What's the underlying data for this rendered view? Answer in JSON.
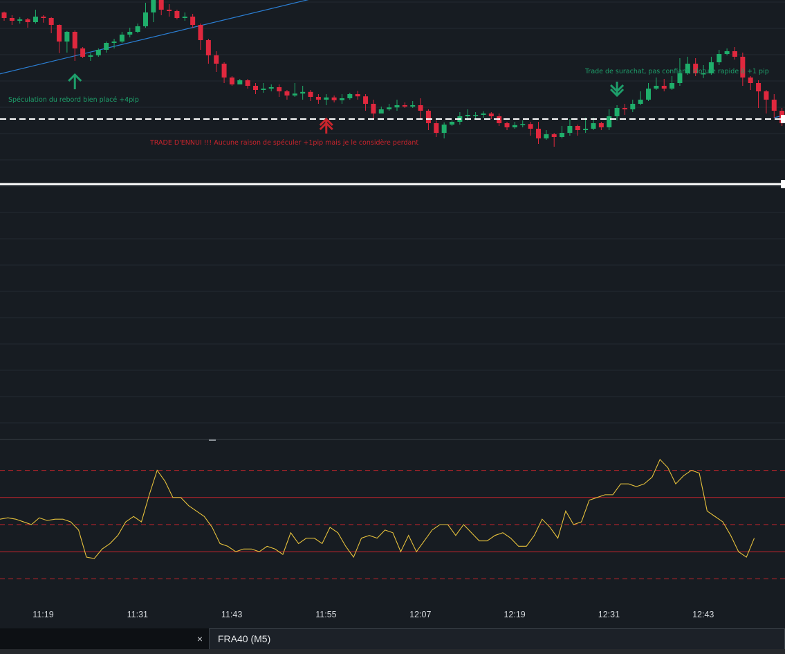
{
  "colors": {
    "background": "#171c22",
    "bull": "#1fae6b",
    "bear": "#e0283e",
    "trendline": "#2b7fd4",
    "oscillator": "#e6c13c",
    "level_line": "#ffffff",
    "band_line": "#c8242c",
    "annotation_green": "#1e9e6a",
    "annotation_red": "#c8242c"
  },
  "annotations": {
    "long_trade_1": "Spéculation du rebord bien placé +4pip",
    "long_trade_2": "TRADE D'ENNUI !!! Aucune raison de spéculer +1pip mais je le considère perdant",
    "short_trade": "Trade de surachat, pas confiant, cloture rapide à +1 pip"
  },
  "icons": {
    "long_1": "arrow-up-icon",
    "long_2": "double-arrow-up-icon",
    "short": "double-arrow-down-icon",
    "close": "close-icon"
  },
  "time_axis": [
    "11:19",
    "11:31",
    "11:43",
    "11:55",
    "12:07",
    "12:19",
    "12:31",
    "12:43"
  ],
  "tab": {
    "close_symbol": "×",
    "label": "FRA40 (M5)"
  },
  "chart_data": {
    "type": "candlestick",
    "symbol": "FRA40",
    "timeframe": "M5",
    "price_axis_visible": false,
    "y_units": "relative price (higher = up)",
    "candles": [
      [
        955,
        935,
        958,
        925
      ],
      [
        935,
        925,
        945,
        910
      ],
      [
        925,
        930,
        938,
        915
      ],
      [
        930,
        920,
        935,
        900
      ],
      [
        920,
        940,
        965,
        915
      ],
      [
        940,
        935,
        945,
        918
      ],
      [
        935,
        910,
        938,
        880
      ],
      [
        910,
        850,
        912,
        808
      ],
      [
        850,
        885,
        888,
        810
      ],
      [
        885,
        825,
        890,
        780
      ],
      [
        825,
        795,
        830,
        790
      ],
      [
        795,
        800,
        808,
        780
      ],
      [
        800,
        820,
        825,
        795
      ],
      [
        820,
        845,
        850,
        810
      ],
      [
        845,
        850,
        860,
        825
      ],
      [
        850,
        875,
        885,
        845
      ],
      [
        875,
        885,
        900,
        865
      ],
      [
        885,
        905,
        915,
        880
      ],
      [
        905,
        955,
        990,
        900
      ],
      [
        955,
        1005,
        1020,
        920
      ],
      [
        1005,
        965,
        1005,
        945
      ],
      [
        965,
        960,
        985,
        940
      ],
      [
        960,
        935,
        965,
        930
      ],
      [
        935,
        940,
        955,
        925
      ],
      [
        940,
        910,
        950,
        900
      ],
      [
        910,
        855,
        915,
        820
      ],
      [
        855,
        800,
        860,
        770
      ],
      [
        800,
        770,
        815,
        740
      ],
      [
        770,
        720,
        775,
        700
      ],
      [
        720,
        695,
        725,
        690
      ],
      [
        695,
        710,
        715,
        700
      ],
      [
        710,
        690,
        715,
        680
      ],
      [
        690,
        675,
        700,
        660
      ],
      [
        675,
        680,
        700,
        665
      ],
      [
        680,
        685,
        695,
        670
      ],
      [
        685,
        670,
        695,
        650
      ],
      [
        670,
        655,
        675,
        640
      ],
      [
        655,
        662,
        700,
        650
      ],
      [
        662,
        668,
        690,
        640
      ],
      [
        668,
        650,
        675,
        635
      ],
      [
        650,
        640,
        660,
        625
      ],
      [
        640,
        648,
        660,
        620
      ],
      [
        648,
        638,
        655,
        630
      ],
      [
        638,
        645,
        660,
        625
      ],
      [
        645,
        660,
        665,
        640
      ],
      [
        660,
        652,
        672,
        640
      ],
      [
        652,
        625,
        660,
        600
      ],
      [
        625,
        590,
        640,
        570
      ],
      [
        590,
        605,
        615,
        595
      ],
      [
        605,
        612,
        625,
        600
      ],
      [
        612,
        620,
        640,
        600
      ],
      [
        620,
        615,
        630,
        610
      ],
      [
        615,
        620,
        635,
        610
      ],
      [
        620,
        600,
        645,
        570
      ],
      [
        600,
        555,
        605,
        530
      ],
      [
        555,
        520,
        565,
        505
      ],
      [
        520,
        550,
        558,
        500
      ],
      [
        550,
        560,
        565,
        545
      ],
      [
        560,
        580,
        595,
        550
      ],
      [
        580,
        585,
        605,
        565
      ],
      [
        585,
        585,
        595,
        570
      ],
      [
        585,
        590,
        598,
        575
      ],
      [
        590,
        580,
        595,
        570
      ],
      [
        580,
        555,
        590,
        545
      ],
      [
        555,
        540,
        560,
        530
      ],
      [
        540,
        548,
        560,
        535
      ],
      [
        548,
        552,
        565,
        540
      ],
      [
        552,
        535,
        560,
        510
      ],
      [
        535,
        500,
        560,
        480
      ],
      [
        500,
        515,
        530,
        495
      ],
      [
        515,
        505,
        520,
        470
      ],
      [
        505,
        520,
        545,
        500
      ],
      [
        520,
        545,
        570,
        510
      ],
      [
        545,
        530,
        550,
        510
      ],
      [
        530,
        535,
        575,
        520
      ],
      [
        535,
        555,
        575,
        530
      ],
      [
        555,
        540,
        560,
        530
      ],
      [
        540,
        580,
        605,
        530
      ],
      [
        580,
        610,
        620,
        565
      ],
      [
        610,
        605,
        625,
        585
      ],
      [
        605,
        625,
        640,
        595
      ],
      [
        625,
        640,
        670,
        620
      ],
      [
        640,
        680,
        700,
        635
      ],
      [
        680,
        690,
        720,
        675
      ],
      [
        690,
        680,
        715,
        670
      ],
      [
        680,
        700,
        725,
        675
      ],
      [
        700,
        735,
        790,
        690
      ],
      [
        735,
        770,
        795,
        730
      ],
      [
        770,
        735,
        790,
        725
      ],
      [
        735,
        735,
        765,
        718
      ],
      [
        735,
        775,
        795,
        730
      ],
      [
        775,
        805,
        820,
        765
      ],
      [
        805,
        815,
        825,
        800
      ],
      [
        815,
        795,
        830,
        785
      ],
      [
        795,
        720,
        810,
        690
      ],
      [
        720,
        700,
        725,
        675
      ],
      [
        700,
        670,
        710,
        610
      ],
      [
        670,
        640,
        675,
        590
      ],
      [
        640,
        600,
        660,
        575
      ],
      [
        600,
        555,
        610,
        545
      ]
    ],
    "trendlines": [
      {
        "from": [
          -1,
          730
        ],
        "to": [
          40,
          1010
        ]
      },
      {
        "from": [
          98,
          575
        ],
        "to": [
          101,
          595
        ]
      }
    ],
    "horizontal_levels": [
      {
        "y": 570,
        "style": "dashed"
      },
      {
        "y": 335,
        "style": "solid"
      }
    ],
    "trade_markers": [
      {
        "direction": "up",
        "bar": 9,
        "note_key": "long_trade_1"
      },
      {
        "direction": "up",
        "bar": 41,
        "note_key": "long_trade_2"
      },
      {
        "direction": "down",
        "bar": 78,
        "note_key": "short_trade"
      }
    ],
    "oscillator": {
      "ylim": [
        0,
        100
      ],
      "levels_dashed": [
        90,
        50,
        10
      ],
      "levels_solid": [
        70,
        30
      ],
      "values": [
        54,
        55,
        54,
        52,
        50,
        55,
        53,
        54,
        54,
        52,
        46,
        26,
        25,
        32,
        36,
        42,
        52,
        56,
        52,
        72,
        90,
        82,
        70,
        70,
        64,
        60,
        56,
        48,
        36,
        34,
        30,
        32,
        32,
        30,
        34,
        32,
        28,
        44,
        36,
        40,
        40,
        36,
        48,
        44,
        34,
        26,
        40,
        42,
        40,
        46,
        44,
        30,
        42,
        30,
        38,
        46,
        50,
        50,
        42,
        50,
        44,
        38,
        38,
        42,
        44,
        40,
        34,
        34,
        42,
        54,
        48,
        40,
        60,
        50,
        52,
        68,
        70,
        72,
        72,
        80,
        80,
        78,
        80,
        85,
        98,
        92,
        80,
        86,
        90,
        88,
        60,
        56,
        52,
        42,
        30,
        26,
        40
      ]
    }
  }
}
